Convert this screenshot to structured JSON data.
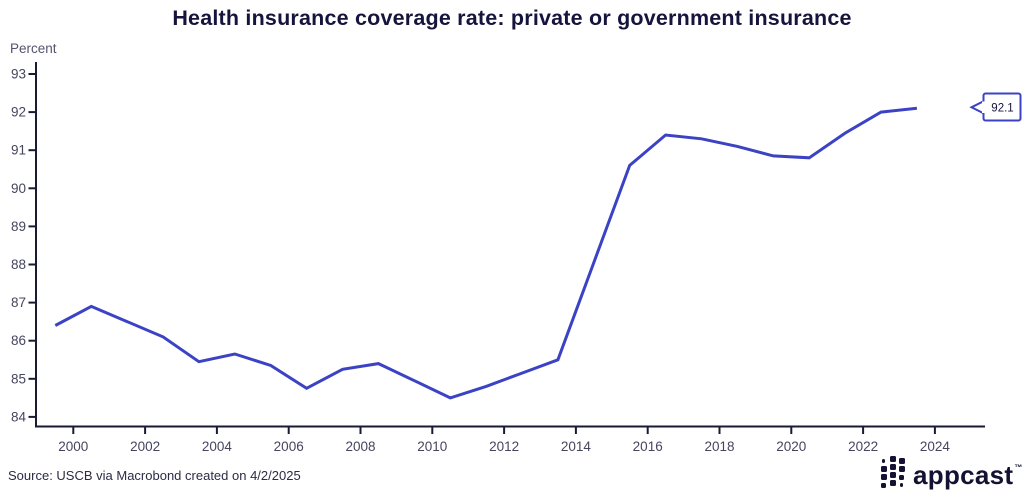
{
  "chart_data": {
    "type": "line",
    "title": "Health insurance coverage rate: private or government insurance",
    "unit_label": "Percent",
    "x": [
      1999,
      2000,
      2001,
      2002,
      2003,
      2004,
      2005,
      2006,
      2007,
      2008,
      2009,
      2010,
      2011,
      2012,
      2013,
      2014,
      2015,
      2016,
      2017,
      2018,
      2019,
      2020,
      2021,
      2022,
      2023
    ],
    "values": [
      86.4,
      86.9,
      86.5,
      86.1,
      85.45,
      85.65,
      85.35,
      84.75,
      85.25,
      85.4,
      84.95,
      84.5,
      84.8,
      85.15,
      85.5,
      88.05,
      90.6,
      91.4,
      91.3,
      91.1,
      90.85,
      90.8,
      91.45,
      92.0,
      92.1
    ],
    "x_ticks": [
      2000,
      2002,
      2004,
      2006,
      2008,
      2010,
      2012,
      2014,
      2016,
      2018,
      2020,
      2022,
      2024
    ],
    "y_ticks": [
      84,
      85,
      86,
      87,
      88,
      89,
      90,
      91,
      92,
      93
    ],
    "ylim": [
      84,
      93
    ],
    "xlabel": "",
    "ylabel": "Percent",
    "grid": false,
    "legend": "none",
    "points_plotted_at": "mid-year",
    "end_label": "92.1"
  },
  "colors": {
    "line": "#3b43c4",
    "axis": "#1a1a33",
    "tick_text": "#45455f",
    "dark_text": "#15143c"
  },
  "source": "Source: USCB via Macrobond created on 4/2/2025",
  "branding": {
    "logo_text": "appcast",
    "trademark": "™"
  }
}
